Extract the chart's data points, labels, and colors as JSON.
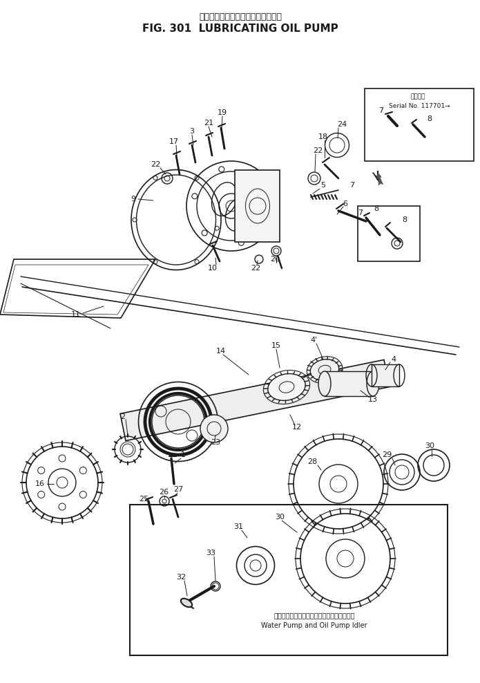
{
  "title_japanese": "ルーブリケーティングオイルポンプ",
  "title_english": "FIG. 301  LUBRICATING OIL PUMP",
  "bg_color": "#ffffff",
  "line_color": "#1a1a1a",
  "serial_box_text_ja": "適用番号",
  "serial_box_text_en": "Serial No. 117701→",
  "inset_text_ja": "ウォータポンプおよびオイルポンプアイドラ",
  "inset_text_en": "Water Pump and Oil Pump Idler",
  "font_size_title_ja": 9,
  "font_size_title_en": 11,
  "font_size_parts": 8,
  "font_size_inset": 7
}
